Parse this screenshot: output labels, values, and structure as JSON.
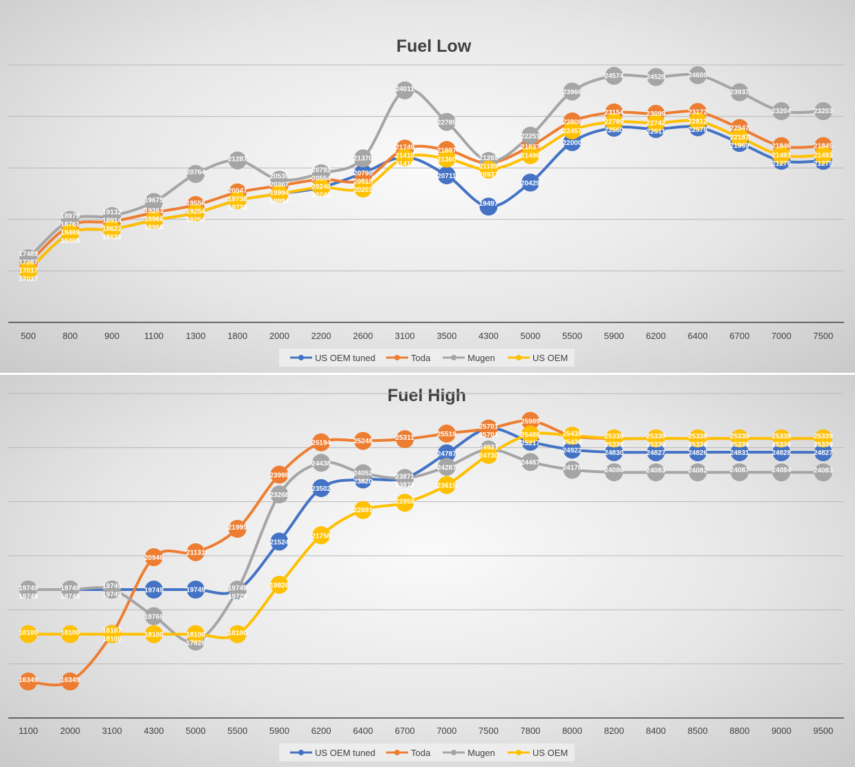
{
  "colors": {
    "US OEM tuned": "#4472c4",
    "Toda": "#ed7d31",
    "Mugen": "#a5a5a5",
    "US OEM": "#ffc000"
  },
  "chart_data": [
    {
      "type": "line",
      "title": "Fuel Low",
      "categories": [
        "500",
        "800",
        "900",
        "1100",
        "1300",
        "1800",
        "2000",
        "2200",
        "2600",
        "3100",
        "3500",
        "4300",
        "5000",
        "5500",
        "5900",
        "6200",
        "6400",
        "6700",
        "7000",
        "7500"
      ],
      "ylim": [
        15000,
        25000
      ],
      "grid": true,
      "legend": "bottom",
      "series": [
        {
          "name": "US OEM tuned",
          "values": [
            17017,
            18469,
            18622,
            18966,
            19254,
            19738,
            19994,
            20240,
            20796,
            21418,
            20711,
            19497,
            20429,
            22000,
            22560,
            22511,
            22578,
            21969,
            21276,
            21275
          ]
        },
        {
          "name": "Toda",
          "values": [
            17287,
            18761,
            18914,
            19263,
            19556,
            20047,
            20307,
            20554,
            20518,
            21749,
            21697,
            21189,
            21837,
            22806,
            23154,
            23099,
            23172,
            22547,
            21846,
            21845
          ]
        },
        {
          "name": "Mugen",
          "values": [
            17489,
            18979,
            19132,
            19675,
            20764,
            21287,
            20539,
            20792,
            21370,
            24011,
            22785,
            21269,
            22251,
            23966,
            24574,
            24529,
            24600,
            23937,
            23204,
            23203
          ]
        },
        {
          "name": "US OEM",
          "values": [
            17017,
            18469,
            18622,
            18966,
            19254,
            19738,
            19994,
            20240,
            20201,
            21410,
            21360,
            20937,
            21496,
            22457,
            22789,
            22742,
            22812,
            22187,
            21493,
            21493
          ]
        }
      ]
    },
    {
      "type": "line",
      "title": "Fuel High",
      "categories": [
        "1100",
        "2000",
        "3100",
        "4300",
        "5000",
        "5500",
        "5900",
        "6200",
        "6400",
        "6700",
        "7000",
        "7500",
        "7800",
        "8000",
        "8200",
        "8400",
        "8500",
        "8800",
        "9000",
        "9500"
      ],
      "ylim": [
        15000,
        27000
      ],
      "grid": true,
      "legend": "bottom",
      "series": [
        {
          "name": "US OEM tuned",
          "values": [
            19749,
            19749,
            19749,
            19749,
            19749,
            19729,
            21524,
            23502,
            23820,
            23871,
            24787,
            25701,
            25217,
            24922,
            24830,
            24827,
            24826,
            24831,
            24828,
            24827
          ]
        },
        {
          "name": "Toda",
          "values": [
            16349,
            16349,
            18107,
            20946,
            21131,
            21995,
            23999,
            25194,
            25248,
            25311,
            25519,
            25701,
            25989,
            25436,
            25338,
            25339,
            25338,
            25339,
            25338,
            25339
          ]
        },
        {
          "name": "Mugen",
          "values": [
            19749,
            19749,
            19749,
            18766,
            17826,
            19749,
            23268,
            24438,
            24052,
            23871,
            24287,
            24931,
            24467,
            24178,
            24086,
            24083,
            24082,
            24087,
            24084,
            24083
          ]
        },
        {
          "name": "US OEM",
          "values": [
            18100,
            18100,
            18100,
            18100,
            18100,
            18100,
            19926,
            21758,
            22691,
            22959,
            23615,
            24730,
            25488,
            25438,
            25338,
            25339,
            25338,
            25339,
            25338,
            25339
          ]
        }
      ]
    }
  ]
}
